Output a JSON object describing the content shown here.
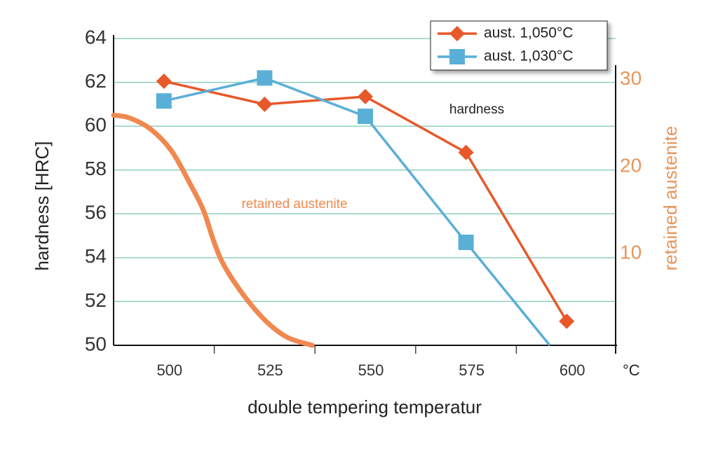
{
  "chart_data": {
    "type": "line",
    "x_label": "double tempering temperatur",
    "x_unit": "°C",
    "y_label": "hardness [HRC]",
    "y2_label": "retained austenite",
    "annotations": [
      "hardness",
      "retained austenite"
    ],
    "xlim": [
      487.5,
      612.5
    ],
    "xticks": [
      500,
      525,
      550,
      575,
      600
    ],
    "minor_xticks": [
      512.5,
      537.5,
      562.5,
      587.5
    ],
    "ylim": [
      50,
      64
    ],
    "yticks": [
      50,
      52,
      54,
      56,
      58,
      60,
      62,
      64
    ],
    "y2lim": [
      -0.5,
      34.7
    ],
    "y2ticks": [
      10,
      20,
      30
    ],
    "grid": true,
    "legend": "top-right",
    "series": [
      {
        "name": "aust. 1,050°C",
        "color": "#e8582a",
        "marker": "diamond",
        "x": [
          500,
          525,
          550,
          575,
          600
        ],
        "values": [
          62.05,
          61.0,
          61.35,
          58.8,
          51.1
        ]
      },
      {
        "name": "aust. 1,030°C",
        "color": "#5aafd6",
        "marker": "square",
        "x": [
          500,
          525,
          550,
          575,
          595.8
        ],
        "values": [
          61.15,
          62.2,
          60.45,
          54.7,
          50
        ]
      },
      {
        "name": "retained austenite",
        "color": "#f0884f",
        "axis": "y2",
        "x": [
          487.5,
          491.4,
          496.7,
          501.9,
          506.3,
          509.8,
          512.4,
          515.0,
          520.2,
          525.5,
          530.7,
          536.8
        ],
        "values": [
          25.9,
          25.6,
          24.3,
          21.8,
          18.2,
          15.0,
          11.4,
          8.6,
          5.0,
          2.2,
          0.4,
          -0.5
        ]
      }
    ]
  }
}
